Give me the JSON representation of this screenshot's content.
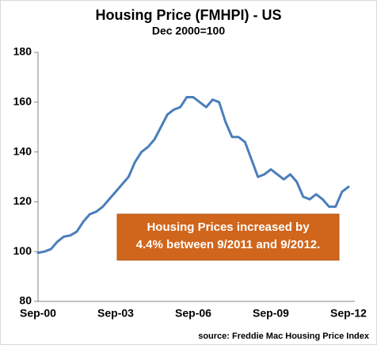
{
  "chart_data": {
    "type": "line",
    "title": "Housing Price (FMHPI) - US",
    "subtitle": "Dec 2000=100",
    "categories": [
      "Sep-00",
      null,
      null,
      null,
      null,
      null,
      null,
      null,
      null,
      null,
      null,
      null,
      "Sep-03",
      null,
      null,
      null,
      null,
      null,
      null,
      null,
      null,
      null,
      null,
      null,
      "Sep-06",
      null,
      null,
      null,
      null,
      null,
      null,
      null,
      null,
      null,
      null,
      null,
      "Sep-09",
      null,
      null,
      null,
      null,
      null,
      null,
      null,
      null,
      null,
      null,
      null,
      "Sep-12"
    ],
    "values": [
      99.5,
      100,
      101,
      104,
      106,
      106.5,
      108,
      112,
      115,
      116,
      118,
      121,
      124,
      127,
      130,
      136,
      140,
      142,
      145,
      150,
      155,
      157,
      158,
      162,
      162,
      160,
      158,
      161,
      160,
      152,
      146,
      146,
      144,
      137,
      130,
      131,
      133,
      131,
      129,
      131,
      128,
      122,
      121,
      123,
      121,
      118,
      118,
      124,
      126
    ],
    "color": "#4a7ebb",
    "ylim": [
      80,
      180
    ],
    "yticks": [
      80,
      100,
      120,
      140,
      160,
      180
    ],
    "grid": false,
    "annotation": [
      "Housing Prices increased by",
      "4.4% between 9/2011 and 9/2012."
    ],
    "source": "source: Freddie Mac Housing Price Index"
  }
}
